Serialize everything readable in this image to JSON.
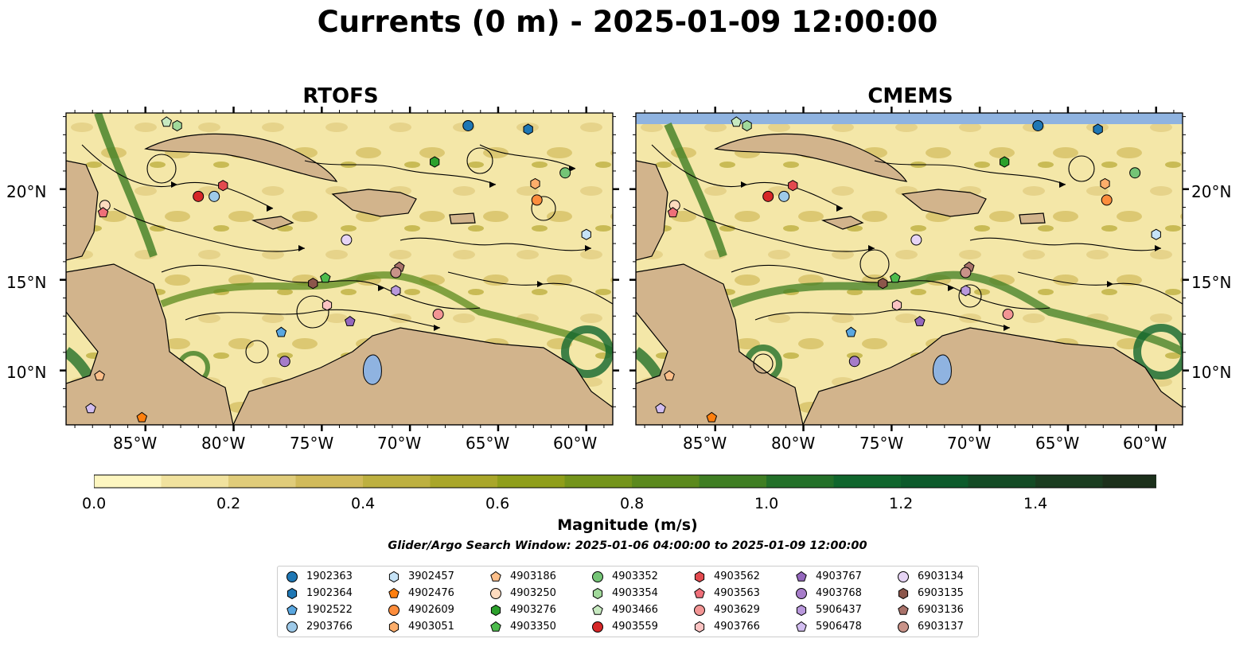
{
  "title": "Currents (0 m) - 2025-01-09 12:00:00",
  "panels": [
    {
      "title": "RTOFS"
    },
    {
      "title": "CMEMS"
    }
  ],
  "lat_labels": [
    "20°N",
    "15°N",
    "10°N"
  ],
  "lon_labels": [
    "85°W",
    "80°W",
    "75°W",
    "70°W",
    "65°W",
    "60°W"
  ],
  "colorbar": {
    "label": "Magnitude (m/s)",
    "ticks": [
      "0.0",
      "0.2",
      "0.4",
      "0.6",
      "0.8",
      "1.0",
      "1.2",
      "1.4"
    ],
    "levels": [
      "#fdf6c0",
      "#f1e29e",
      "#e0cc7a",
      "#d1ba5a",
      "#bdb040",
      "#a9a629",
      "#8f9e1a",
      "#74941b",
      "#5b891d",
      "#3f7e23",
      "#237029",
      "#10662d",
      "#0c5a2b",
      "#134b25",
      "#1a3d20",
      "#1c301b"
    ]
  },
  "search_window": "Glider/Argo Search Window: 2025-01-06 04:00:00 to 2025-01-09 12:00:00",
  "legend": [
    {
      "id": "1902363",
      "color": "#1f77b4",
      "shape": "circle"
    },
    {
      "id": "1902364",
      "color": "#1f77b4",
      "shape": "hexagon"
    },
    {
      "id": "1902522",
      "color": "#5aa7e0",
      "shape": "pentagon"
    },
    {
      "id": "2903766",
      "color": "#9ecae9",
      "shape": "circle"
    },
    {
      "id": "3902457",
      "color": "#c6e3f7",
      "shape": "hexagon"
    },
    {
      "id": "4902476",
      "color": "#ff7f0e",
      "shape": "pentagon"
    },
    {
      "id": "4902609",
      "color": "#fd8d3c",
      "shape": "circle"
    },
    {
      "id": "4903051",
      "color": "#fdae6b",
      "shape": "hexagon"
    },
    {
      "id": "4903186",
      "color": "#fdbf8a",
      "shape": "pentagon"
    },
    {
      "id": "4903250",
      "color": "#fddbbf",
      "shape": "circle"
    },
    {
      "id": "4903276",
      "color": "#2ca02c",
      "shape": "hexagon"
    },
    {
      "id": "4903350",
      "color": "#4dbb4d",
      "shape": "pentagon"
    },
    {
      "id": "4903352",
      "color": "#74c476",
      "shape": "circle"
    },
    {
      "id": "4903354",
      "color": "#a1d99b",
      "shape": "hexagon"
    },
    {
      "id": "4903466",
      "color": "#c7e9c0",
      "shape": "pentagon"
    },
    {
      "id": "4903559",
      "color": "#d62728",
      "shape": "circle"
    },
    {
      "id": "4903562",
      "color": "#e34a4f",
      "shape": "hexagon"
    },
    {
      "id": "4903563",
      "color": "#ef6f79",
      "shape": "pentagon"
    },
    {
      "id": "4903629",
      "color": "#f29594",
      "shape": "circle"
    },
    {
      "id": "4903766",
      "color": "#fbc3c2",
      "shape": "hexagon"
    },
    {
      "id": "4903767",
      "color": "#9467bd",
      "shape": "pentagon"
    },
    {
      "id": "4903768",
      "color": "#a67cc9",
      "shape": "circle"
    },
    {
      "id": "5906437",
      "color": "#b998dc",
      "shape": "hexagon"
    },
    {
      "id": "5906478",
      "color": "#d2bdf0",
      "shape": "pentagon"
    },
    {
      "id": "6903134",
      "color": "#e6d4f5",
      "shape": "circle"
    },
    {
      "id": "6903135",
      "color": "#8c564b",
      "shape": "hexagon"
    },
    {
      "id": "6903136",
      "color": "#a9726a",
      "shape": "pentagon"
    },
    {
      "id": "6903137",
      "color": "#c99389",
      "shape": "circle"
    }
  ]
}
